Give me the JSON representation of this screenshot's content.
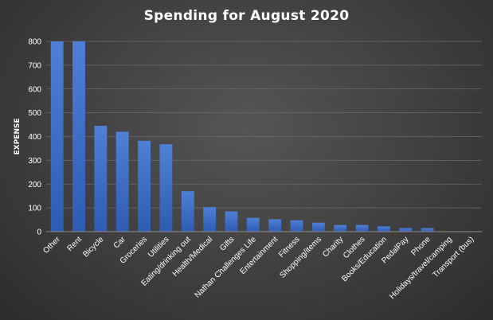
{
  "chart_data": {
    "type": "bar",
    "title": "Spending  for August 2020",
    "xlabel": "",
    "ylabel": "EXPENSE",
    "ylim": [
      0,
      800
    ],
    "yticks": [
      0,
      100,
      200,
      300,
      400,
      500,
      600,
      700,
      800
    ],
    "grid": true,
    "categories": [
      "Other",
      "Rent",
      "Bicycle",
      "Car",
      "Groceries",
      "Utilities",
      "Eating/drinking out",
      "Health/Medical",
      "Gifts",
      "Nathan Challenges Life",
      "Entertainment",
      "Fitness",
      "Shopping/items",
      "Charity",
      "Clothes",
      "Books/Education",
      "PedalPay",
      "Phone",
      "Holidays/travel/camping",
      "Transport (bus)"
    ],
    "values": [
      800,
      800,
      445,
      420,
      382,
      368,
      170,
      103,
      85,
      58,
      52,
      48,
      38,
      28,
      28,
      22,
      15,
      15,
      0,
      0
    ],
    "bar_color": "#4472C4"
  }
}
